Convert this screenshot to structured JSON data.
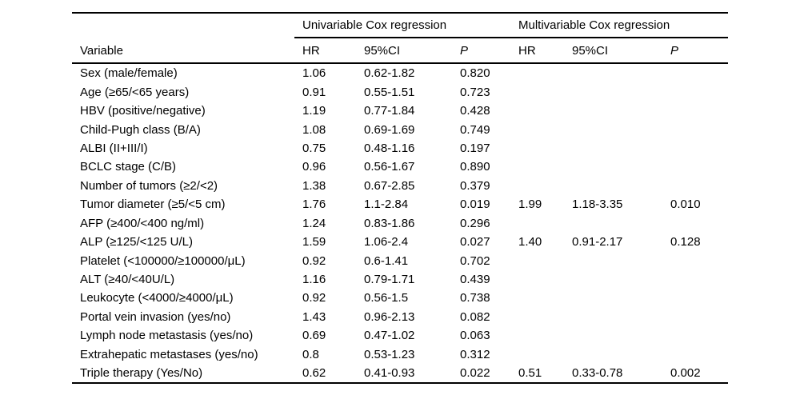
{
  "table": {
    "group_headers": {
      "univariable": "Univariable Cox regression",
      "multivariable": "Multivariable Cox regression"
    },
    "column_headers": {
      "variable": "Variable",
      "hr": "HR",
      "ci": "95%CI",
      "p": "P"
    },
    "rows": [
      {
        "variable": "Sex (male/female)",
        "u_hr": "1.06",
        "u_ci": "0.62-1.82",
        "u_p": "0.820",
        "m_hr": "",
        "m_ci": "",
        "m_p": ""
      },
      {
        "variable": "Age (≥65/<65 years)",
        "u_hr": "0.91",
        "u_ci": "0.55-1.51",
        "u_p": "0.723",
        "m_hr": "",
        "m_ci": "",
        "m_p": ""
      },
      {
        "variable": "HBV (positive/negative)",
        "u_hr": "1.19",
        "u_ci": "0.77-1.84",
        "u_p": "0.428",
        "m_hr": "",
        "m_ci": "",
        "m_p": ""
      },
      {
        "variable": "Child-Pugh class (B/A)",
        "u_hr": "1.08",
        "u_ci": "0.69-1.69",
        "u_p": "0.749",
        "m_hr": "",
        "m_ci": "",
        "m_p": ""
      },
      {
        "variable": "ALBI (II+III/I)",
        "u_hr": "0.75",
        "u_ci": "0.48-1.16",
        "u_p": "0.197",
        "m_hr": "",
        "m_ci": "",
        "m_p": ""
      },
      {
        "variable": "BCLC stage (C/B)",
        "u_hr": "0.96",
        "u_ci": "0.56-1.67",
        "u_p": "0.890",
        "m_hr": "",
        "m_ci": "",
        "m_p": ""
      },
      {
        "variable": "Number of tumors (≥2/<2)",
        "u_hr": "1.38",
        "u_ci": "0.67-2.85",
        "u_p": "0.379",
        "m_hr": "",
        "m_ci": "",
        "m_p": ""
      },
      {
        "variable": "Tumor diameter (≥5/<5 cm)",
        "u_hr": "1.76",
        "u_ci": "1.1-2.84",
        "u_p": "0.019",
        "m_hr": "1.99",
        "m_ci": "1.18-3.35",
        "m_p": "0.010"
      },
      {
        "variable": "AFP (≥400/<400 ng/ml)",
        "u_hr": "1.24",
        "u_ci": "0.83-1.86",
        "u_p": "0.296",
        "m_hr": "",
        "m_ci": "",
        "m_p": ""
      },
      {
        "variable": "ALP (≥125/<125 U/L)",
        "u_hr": "1.59",
        "u_ci": "1.06-2.4",
        "u_p": "0.027",
        "m_hr": "1.40",
        "m_ci": "0.91-2.17",
        "m_p": "0.128"
      },
      {
        "variable": "Platelet (<100000/≥100000/μL)",
        "u_hr": "0.92",
        "u_ci": "0.6-1.41",
        "u_p": "0.702",
        "m_hr": "",
        "m_ci": "",
        "m_p": ""
      },
      {
        "variable": "ALT (≥40/<40U/L)",
        "u_hr": "1.16",
        "u_ci": "0.79-1.71",
        "u_p": "0.439",
        "m_hr": "",
        "m_ci": "",
        "m_p": ""
      },
      {
        "variable": "Leukocyte (<4000/≥4000/μL)",
        "u_hr": "0.92",
        "u_ci": "0.56-1.5",
        "u_p": "0.738",
        "m_hr": "",
        "m_ci": "",
        "m_p": ""
      },
      {
        "variable": "Portal vein invasion (yes/no)",
        "u_hr": "1.43",
        "u_ci": "0.96-2.13",
        "u_p": "0.082",
        "m_hr": "",
        "m_ci": "",
        "m_p": ""
      },
      {
        "variable": "Lymph node metastasis (yes/no)",
        "u_hr": "0.69",
        "u_ci": "0.47-1.02",
        "u_p": "0.063",
        "m_hr": "",
        "m_ci": "",
        "m_p": ""
      },
      {
        "variable": "Extrahepatic metastases (yes/no)",
        "u_hr": "0.8",
        "u_ci": "0.53-1.23",
        "u_p": "0.312",
        "m_hr": "",
        "m_ci": "",
        "m_p": ""
      },
      {
        "variable": "Triple therapy (Yes/No)",
        "u_hr": "0.62",
        "u_ci": "0.41-0.93",
        "u_p": "0.022",
        "m_hr": "0.51",
        "m_ci": "0.33-0.78",
        "m_p": "0.002"
      }
    ]
  },
  "colors": {
    "background": "#ffffff",
    "text": "#000000",
    "rule": "#000000"
  }
}
